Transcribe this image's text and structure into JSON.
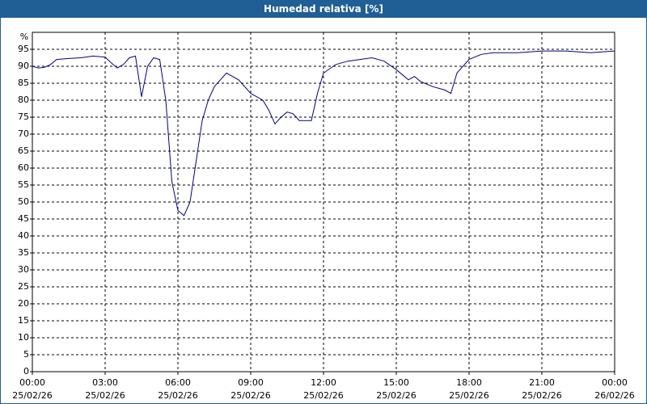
{
  "chart_data": {
    "type": "line",
    "title": "Humedad relativa [%]",
    "y_label": "%",
    "x": [
      0,
      0.25,
      0.5,
      0.75,
      1,
      1.5,
      2,
      2.5,
      3,
      3.25,
      3.5,
      3.75,
      4,
      4.25,
      4.5,
      4.75,
      5,
      5.25,
      5.5,
      5.75,
      6,
      6.25,
      6.5,
      6.75,
      7,
      7.25,
      7.5,
      7.75,
      8,
      8.5,
      9,
      9.5,
      9.75,
      10,
      10.25,
      10.5,
      10.75,
      11,
      11.5,
      11.75,
      12,
      12.5,
      13,
      13.5,
      14,
      14.5,
      15,
      15.5,
      15.75,
      16,
      16.5,
      17,
      17.25,
      17.5,
      18,
      18.5,
      19,
      20,
      21,
      22,
      23,
      24
    ],
    "series": [
      {
        "name": "Humedad relativa",
        "color": "#00008b",
        "values": [
          90,
          89.5,
          89.7,
          90.5,
          92,
          92.3,
          92.5,
          93,
          92.7,
          91,
          89.5,
          90.5,
          92.5,
          93,
          81,
          90,
          92.5,
          92,
          80,
          56,
          47.5,
          46,
          50,
          62,
          74,
          80,
          84,
          86,
          88,
          86,
          82,
          80,
          77,
          73,
          75,
          76.5,
          76,
          74,
          74,
          82,
          88,
          90.5,
          91.5,
          92,
          92.5,
          91.5,
          89,
          86,
          87,
          85.5,
          84,
          83,
          82,
          88,
          92,
          93.5,
          94,
          94,
          94.5,
          94.5,
          94,
          94.5
        ]
      }
    ],
    "xlim": [
      0,
      24
    ],
    "ylim": [
      0,
      100
    ],
    "yticks": [
      0,
      5,
      10,
      15,
      20,
      25,
      30,
      35,
      40,
      45,
      50,
      55,
      60,
      65,
      70,
      75,
      80,
      85,
      90,
      95
    ],
    "xticks": [
      {
        "value": 0,
        "label": "00:00",
        "date": "25/02/26"
      },
      {
        "value": 3,
        "label": "03:00",
        "date": "25/02/26"
      },
      {
        "value": 6,
        "label": "06:00",
        "date": "25/02/26"
      },
      {
        "value": 9,
        "label": "09:00",
        "date": "25/02/26"
      },
      {
        "value": 12,
        "label": "12:00",
        "date": "25/02/26"
      },
      {
        "value": 15,
        "label": "15:00",
        "date": "25/02/26"
      },
      {
        "value": 18,
        "label": "18:00",
        "date": "25/02/26"
      },
      {
        "value": 21,
        "label": "21:00",
        "date": "25/02/26"
      },
      {
        "value": 24,
        "label": "00:00",
        "date": "26/02/26"
      }
    ],
    "grid": true
  }
}
